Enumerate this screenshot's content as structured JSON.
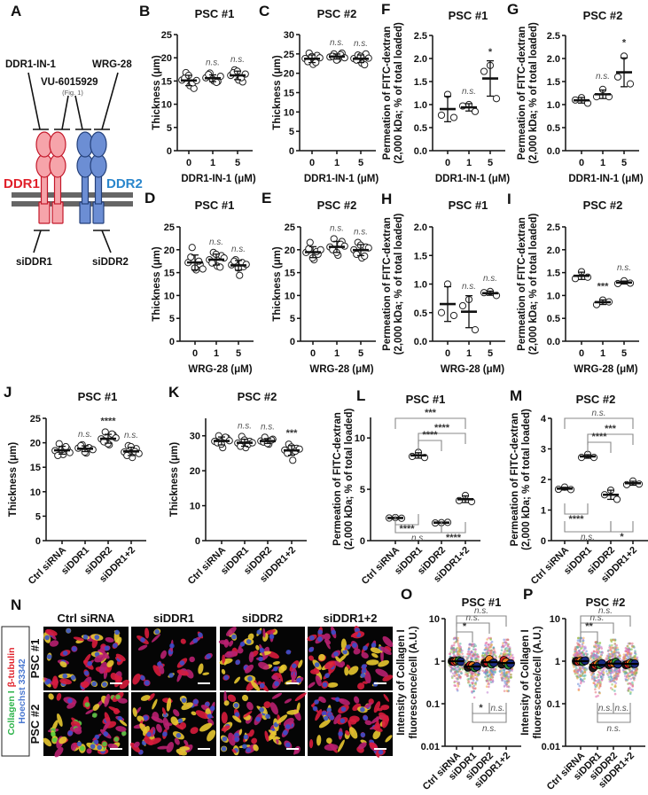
{
  "panel_a": {
    "letter": "A",
    "inhibitor_1": "DDR1-IN-1",
    "inhibitor_2": "VU-6015929",
    "inhibitor_2_note": "(Fig. 1)",
    "inhibitor_3": "WRG-28",
    "receptor_1": "DDR1",
    "receptor_2": "DDR2",
    "sirna_1": "siDDR1",
    "sirna_2": "siDDR2",
    "colors": {
      "ddr1_fill": "#f6a4aa",
      "ddr1_stroke": "#c4182a",
      "ddr1_label": "#e0202a",
      "ddr2_fill": "#6c8ed4",
      "ddr2_stroke": "#24407a",
      "ddr2_label": "#2a86cc",
      "membrane": "#666666"
    }
  },
  "panel_n": {
    "letter": "N",
    "columns": [
      "Ctrl siRNA",
      "siDDR1",
      "siDDR2",
      "siDDR1+2"
    ],
    "rows": [
      "PSC #1",
      "PSC #2"
    ],
    "legend": {
      "collagen": "Collagen I",
      "tubulin": "β-tubulin",
      "hoechst": "Hoechst 33342",
      "collagen_color": "#2db34a",
      "tubulin_color": "#e0202a",
      "hoechst_color": "#4a78d0"
    }
  },
  "chart_data": [
    {
      "panel": "B",
      "type": "scatter",
      "title": "PSC #1",
      "xlabel": "DDR1-IN-1 (μM)",
      "ylabel": [
        "Thickness (μm)"
      ],
      "categories": [
        "0",
        "1",
        "5"
      ],
      "ylim": [
        0,
        25
      ],
      "yticks": [
        0,
        5,
        10,
        15,
        20,
        25
      ],
      "ytick_labels": [
        "0",
        "5",
        "10",
        "15",
        "20",
        "25"
      ],
      "points": [
        [
          15.2,
          16.8,
          14.0,
          13.4,
          15.6,
          16.2,
          14.6,
          15.1
        ],
        [
          15.7,
          16.7,
          15.0,
          14.9,
          16.4,
          15.4,
          14.7,
          16.0
        ],
        [
          16.2,
          17.4,
          15.2,
          14.8,
          16.8,
          17.1,
          15.7,
          16.5
        ]
      ],
      "significance": [
        "",
        "n.s.",
        "n.s."
      ]
    },
    {
      "panel": "C",
      "type": "scatter",
      "title": "PSC #2",
      "xlabel": "DDR1-IN-1 (μM)",
      "ylabel": [
        "Thickness (μm)"
      ],
      "categories": [
        "0",
        "1",
        "5"
      ],
      "ylim": [
        0,
        30
      ],
      "yticks": [
        0,
        5,
        10,
        15,
        20,
        25,
        30
      ],
      "ytick_labels": [
        "0",
        "5",
        "10",
        "15",
        "20",
        "25",
        "30"
      ],
      "points": [
        [
          23.8,
          25.2,
          22.3,
          24.6,
          23.0,
          24.3,
          22.8,
          24.0
        ],
        [
          24.2,
          25.0,
          23.6,
          25.2,
          24.4,
          23.4,
          24.8,
          24.0
        ],
        [
          23.8,
          24.7,
          22.6,
          25.0,
          23.4,
          24.4,
          22.2,
          23.9
        ]
      ],
      "significance": [
        "",
        "n.s.",
        "n.s."
      ]
    },
    {
      "panel": "F",
      "type": "scatter",
      "title": "PSC #1",
      "xlabel": "DDR1-IN-1 (μM)",
      "ylabel": [
        "Permeation of FITC-dextran",
        "(2,000 kDa; % of total loaded)"
      ],
      "categories": [
        "0",
        "1",
        "5"
      ],
      "ylim": [
        0,
        2.5
      ],
      "yticks": [
        0,
        0.5,
        1,
        1.5,
        2,
        2.5
      ],
      "ytick_labels": [
        "0.0",
        "0.5",
        "1.0",
        "1.5",
        "2.0",
        "2.5"
      ],
      "points": [
        [
          1.22,
          0.77,
          0.72
        ],
        [
          1.0,
          0.97,
          0.85
        ],
        [
          1.85,
          1.72,
          1.13
        ]
      ],
      "significance": [
        "",
        "n.s.",
        "*"
      ]
    },
    {
      "panel": "G",
      "type": "scatter",
      "title": "PSC #2",
      "xlabel": "DDR1-IN-1 (μM)",
      "ylabel": [
        "Permeation of FITC-dextran",
        "(2,000 kDa; % of total loaded)"
      ],
      "categories": [
        "0",
        "1",
        "5"
      ],
      "ylim": [
        0,
        2.5
      ],
      "yticks": [
        0,
        0.5,
        1,
        1.5,
        2,
        2.5
      ],
      "ytick_labels": [
        "0.0",
        "0.5",
        "1.0",
        "1.5",
        "2.0",
        "2.5"
      ],
      "points": [
        [
          1.15,
          1.1,
          1.03
        ],
        [
          1.33,
          1.17,
          1.17
        ],
        [
          2.05,
          1.6,
          1.45
        ]
      ],
      "significance": [
        "",
        "n.s.",
        "*"
      ]
    },
    {
      "panel": "D",
      "type": "scatter",
      "title": "PSC #1",
      "xlabel": "WRG-28 (μM)",
      "ylabel": [
        "Thickness (μm)"
      ],
      "categories": [
        "0",
        "1",
        "5"
      ],
      "ylim": [
        0,
        25
      ],
      "yticks": [
        0,
        5,
        10,
        15,
        20,
        25
      ],
      "ytick_labels": [
        "0",
        "5",
        "10",
        "15",
        "20",
        "25"
      ],
      "points": [
        [
          17.2,
          20.5,
          15.6,
          16.8,
          18.4,
          16.0,
          17.5,
          15.8
        ],
        [
          17.8,
          19.4,
          16.4,
          18.7,
          17.1,
          19.0,
          16.2,
          18.2
        ],
        [
          16.7,
          17.8,
          14.4,
          16.3,
          17.5,
          16.0,
          17.2,
          16.8
        ]
      ],
      "significance": [
        "",
        "n.s.",
        "n.s."
      ]
    },
    {
      "panel": "E",
      "type": "scatter",
      "title": "PSC #2",
      "xlabel": "WRG-28 (μM)",
      "ylabel": [
        "Thickness (μm)"
      ],
      "categories": [
        "0",
        "1",
        "5"
      ],
      "ylim": [
        0,
        25
      ],
      "yticks": [
        0,
        5,
        10,
        15,
        20,
        25
      ],
      "ytick_labels": [
        "0",
        "5",
        "10",
        "15",
        "20",
        "25"
      ],
      "points": [
        [
          19.4,
          21.6,
          17.8,
          19.0,
          20.2,
          18.2,
          19.6,
          20.0
        ],
        [
          20.6,
          22.4,
          18.8,
          21.8,
          20.0,
          19.4,
          21.2,
          20.8
        ],
        [
          20.0,
          21.6,
          18.2,
          20.6,
          19.0,
          21.0,
          18.6,
          20.4
        ]
      ],
      "significance": [
        "",
        "n.s.",
        "n.s."
      ]
    },
    {
      "panel": "H",
      "type": "scatter",
      "title": "PSC #1",
      "xlabel": "WRG-28 (μM)",
      "ylabel": [
        "Permeation of FITC-dextran",
        "(2,000 kDa; % of total loaded)"
      ],
      "categories": [
        "0",
        "1",
        "5"
      ],
      "ylim": [
        0,
        2
      ],
      "yticks": [
        0,
        0.5,
        1,
        1.5,
        2
      ],
      "ytick_labels": [
        "0.0",
        "0.5",
        "1.0",
        "1.5",
        "2.0"
      ],
      "points": [
        [
          1.0,
          0.5,
          0.45
        ],
        [
          0.73,
          0.62,
          0.2
        ],
        [
          0.87,
          0.85,
          0.8
        ]
      ],
      "significance": [
        "",
        "n.s.",
        "n.s."
      ]
    },
    {
      "panel": "I",
      "type": "scatter",
      "title": "PSC #2",
      "xlabel": "WRG-28 (μM)",
      "ylabel": [
        "Permeation of FITC-dextran",
        "(2,000 kDa; % of total loaded)"
      ],
      "categories": [
        "0",
        "1",
        "5"
      ],
      "ylim": [
        0,
        2.5
      ],
      "yticks": [
        0,
        0.5,
        1,
        1.5,
        2,
        2.5
      ],
      "ytick_labels": [
        "0.0",
        "0.5",
        "1.0",
        "1.5",
        "2.0",
        "2.5"
      ],
      "points": [
        [
          1.52,
          1.37,
          1.4
        ],
        [
          0.9,
          0.8,
          0.86
        ],
        [
          1.32,
          1.26,
          1.27
        ]
      ],
      "significance": [
        "",
        "***",
        "n.s."
      ]
    },
    {
      "panel": "J",
      "type": "scatter",
      "title": "PSC #1",
      "ylabel": [
        "Thickness (μm)"
      ],
      "categories": [
        "Ctrl siRNA",
        "siDDR1",
        "siDDR2",
        "siDDR1+2"
      ],
      "ylim": [
        0,
        25
      ],
      "yticks": [
        0,
        5,
        10,
        15,
        20,
        25
      ],
      "ytick_labels": [
        "0",
        "5",
        "10",
        "15",
        "20",
        "25"
      ],
      "points": [
        [
          18.4,
          19.8,
          17.6,
          18.8,
          17.4,
          18.6,
          19.2,
          18.0
        ],
        [
          18.9,
          19.6,
          17.9,
          18.8,
          19.4,
          18.1,
          19.0,
          18.6
        ],
        [
          20.8,
          22.2,
          19.6,
          21.6,
          20.4,
          19.8,
          21.8,
          21.0,
          20.2
        ],
        [
          18.1,
          19.4,
          17.0,
          18.8,
          17.4,
          19.2,
          18.2,
          17.8
        ]
      ],
      "significance": [
        "",
        "n.s.",
        "****",
        "n.s."
      ]
    },
    {
      "panel": "K",
      "type": "scatter",
      "title": "PSC #2",
      "ylabel": [
        "Thickness (μm)"
      ],
      "categories": [
        "Ctrl siRNA",
        "siDDR1",
        "siDDR2",
        "siDDR1+2"
      ],
      "ylim": [
        0,
        35
      ],
      "yticks": [
        0,
        10,
        20,
        30
      ],
      "ytick_labels": [
        "0",
        "10",
        "20",
        "30"
      ],
      "points": [
        [
          28.4,
          30.0,
          26.6,
          29.4,
          28.0,
          27.6,
          29.6,
          28.6
        ],
        [
          27.9,
          29.8,
          26.6,
          28.4,
          27.0,
          28.8,
          27.6,
          28.0
        ],
        [
          28.5,
          29.6,
          27.6,
          29.0,
          28.2,
          27.8,
          28.8
        ],
        [
          25.9,
          27.6,
          23.0,
          26.4,
          25.0,
          26.8,
          25.6,
          26.2
        ]
      ],
      "significance": [
        "",
        "n.s.",
        "n.s.",
        "***"
      ]
    },
    {
      "panel": "L",
      "type": "scatter",
      "title": "PSC #1",
      "ylabel": [
        "Permeation of FITC-dextran",
        "(2,000 kDa; % of total loaded)"
      ],
      "categories": [
        "Ctrl siRNA",
        "siDDR1",
        "siDDR2",
        "siDDR1+2"
      ],
      "ylim": [
        0,
        12
      ],
      "yticks": [
        0,
        5,
        10
      ],
      "ytick_labels": [
        "0",
        "5",
        "10"
      ],
      "points": [
        [
          2.25,
          2.2,
          2.18
        ],
        [
          8.6,
          8.2,
          8.1
        ],
        [
          1.75,
          1.72,
          1.78
        ],
        [
          4.4,
          3.9,
          3.8
        ]
      ],
      "brackets": [
        {
          "from": 0,
          "to": 3,
          "label": "***"
        },
        {
          "from": 1,
          "to": 3,
          "label": "****"
        },
        {
          "from": 1,
          "to": 2,
          "label": "****"
        },
        {
          "from": 0,
          "to": 1,
          "label": "****"
        },
        {
          "from": 0,
          "to": 2,
          "label": "n.s."
        },
        {
          "from": 2,
          "to": 3,
          "label": "****"
        }
      ]
    },
    {
      "panel": "M",
      "type": "scatter",
      "title": "PSC #2",
      "ylabel": [
        "Permeation of FITC-dextran",
        "(2,000 kDa; % of total loaded)"
      ],
      "categories": [
        "Ctrl siRNA",
        "siDDR1",
        "siDDR2",
        "siDDR1+2"
      ],
      "ylim": [
        0,
        4
      ],
      "yticks": [
        0,
        1,
        2,
        3,
        4
      ],
      "ytick_labels": [
        "0",
        "1",
        "2",
        "3",
        "4"
      ],
      "points": [
        [
          1.75,
          1.68,
          1.67
        ],
        [
          2.82,
          2.72,
          2.72
        ],
        [
          1.65,
          1.5,
          1.35
        ],
        [
          1.95,
          1.83,
          1.85
        ]
      ],
      "brackets": [
        {
          "from": 0,
          "to": 3,
          "label": "n.s."
        },
        {
          "from": 1,
          "to": 3,
          "label": "***"
        },
        {
          "from": 1,
          "to": 2,
          "label": "****"
        },
        {
          "from": 0,
          "to": 1,
          "label": "****"
        },
        {
          "from": 0,
          "to": 2,
          "label": "n.s."
        },
        {
          "from": 2,
          "to": 3,
          "label": "*"
        }
      ]
    },
    {
      "panel": "O",
      "type": "scatter",
      "title": "PSC #1",
      "ylabel": [
        "Intensity of Collagen I",
        "fluorescence/cell (A.U.)"
      ],
      "yscale": "log",
      "categories": [
        "Ctrl siRNA",
        "siDDR1",
        "siDDR2",
        "siDDR1+2"
      ],
      "ylim": [
        0.01,
        10
      ],
      "yticks": [
        0.01,
        0.1,
        1,
        10
      ],
      "ytick_labels": [
        "0.01",
        "0.1",
        "1",
        "10"
      ],
      "replicate_means": [
        [
          1.0,
          0.97,
          1.02,
          1.03,
          0.98
        ],
        [
          0.72,
          0.8,
          0.78,
          0.7,
          0.75
        ],
        [
          0.9,
          0.95,
          1.1,
          0.85,
          0.92
        ],
        [
          0.85,
          1.05,
          0.95,
          0.8,
          0.88
        ]
      ],
      "replicate_colors": [
        "#1a1a1a",
        "#d02020",
        "#f08020",
        "#2a8a3a",
        "#1a2a80"
      ],
      "cell_range": [
        [
          0.12,
          3.5
        ],
        [
          0.08,
          2.5
        ],
        [
          0.1,
          3.5
        ],
        [
          0.08,
          3.2
        ]
      ],
      "brackets": [
        {
          "from": 0,
          "to": 3,
          "label": "n.s."
        },
        {
          "from": 0,
          "to": 2,
          "label": "n.s."
        },
        {
          "from": 0,
          "to": 1,
          "label": "*"
        },
        {
          "from": 1,
          "to": 2,
          "label": "*"
        },
        {
          "from": 2,
          "to": 3,
          "label": "n.s."
        },
        {
          "from": 1,
          "to": 3,
          "label": "n.s."
        }
      ]
    },
    {
      "panel": "P",
      "type": "scatter",
      "title": "PSC #2",
      "ylabel": [
        "Intensity of Collagen I",
        "fluorescence/cell (A.U.)"
      ],
      "yscale": "log",
      "categories": [
        "Ctrl siRNA",
        "siDDR1",
        "siDDR2",
        "siDDR1+2"
      ],
      "ylim": [
        0.01,
        10
      ],
      "yticks": [
        0.01,
        0.1,
        1,
        10
      ],
      "ytick_labels": [
        "0.01",
        "0.1",
        "1",
        "10"
      ],
      "replicate_means": [
        [
          1.0,
          0.98,
          1.02,
          0.97,
          1.03
        ],
        [
          0.7,
          0.8,
          0.85,
          0.82,
          0.88
        ],
        [
          0.82,
          0.88,
          0.9,
          0.95,
          0.85
        ],
        [
          0.82,
          0.85,
          0.9,
          0.88,
          0.87
        ]
      ],
      "replicate_colors": [
        "#1a1a1a",
        "#d02020",
        "#f08020",
        "#2a8a3a",
        "#1a2a80"
      ],
      "cell_range": [
        [
          0.18,
          3.5
        ],
        [
          0.12,
          2.8
        ],
        [
          0.08,
          3.2
        ],
        [
          0.1,
          2.6
        ]
      ],
      "brackets": [
        {
          "from": 0,
          "to": 3,
          "label": "n.s."
        },
        {
          "from": 0,
          "to": 2,
          "label": "n.s."
        },
        {
          "from": 0,
          "to": 1,
          "label": "**"
        },
        {
          "from": 1,
          "to": 2,
          "label": "n.s."
        },
        {
          "from": 2,
          "to": 3,
          "label": "n.s."
        },
        {
          "from": 1,
          "to": 3,
          "label": "n.s."
        }
      ]
    }
  ]
}
